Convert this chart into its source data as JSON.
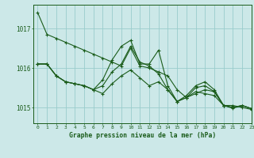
{
  "background_color": "#cce8e8",
  "grid_color": "#99cccc",
  "line_color": "#1a5c1a",
  "title": "Graphe pression niveau de la mer (hPa)",
  "xlim": [
    -0.5,
    23
  ],
  "ylim": [
    1014.6,
    1017.6
  ],
  "yticks": [
    1015,
    1016,
    1017
  ],
  "xticks": [
    0,
    1,
    2,
    3,
    4,
    5,
    6,
    7,
    8,
    9,
    10,
    11,
    12,
    13,
    14,
    15,
    16,
    17,
    18,
    19,
    20,
    21,
    22,
    23
  ],
  "series": [
    [
      1017.4,
      1016.85,
      1016.75,
      1016.65,
      1016.55,
      1016.45,
      1016.35,
      1016.25,
      1016.15,
      1016.05,
      1016.5,
      1016.05,
      1016.0,
      1015.9,
      1015.8,
      1015.45,
      1015.25,
      1015.4,
      1015.35,
      1015.3,
      1015.05,
      1015.05,
      1015.0,
      1014.95
    ],
    [
      1016.1,
      1016.1,
      1015.8,
      1015.65,
      1015.6,
      1015.55,
      1015.45,
      1015.7,
      1016.2,
      1016.55,
      1016.7,
      1016.1,
      1016.1,
      1016.45,
      1015.55,
      1015.15,
      1015.3,
      1015.55,
      1015.65,
      1015.45,
      1015.05,
      1014.98,
      1015.05,
      1014.97
    ],
    [
      1016.1,
      1016.1,
      1015.8,
      1015.65,
      1015.6,
      1015.55,
      1015.45,
      1015.55,
      1015.9,
      1016.1,
      1016.55,
      1016.15,
      1016.05,
      1015.85,
      1015.45,
      1015.15,
      1015.25,
      1015.5,
      1015.55,
      1015.4,
      1015.05,
      1015.0,
      1015.05,
      1014.97
    ],
    [
      1016.1,
      1016.1,
      1015.8,
      1015.65,
      1015.6,
      1015.55,
      1015.45,
      1015.35,
      1015.6,
      1015.8,
      1015.95,
      1015.75,
      1015.55,
      1015.65,
      1015.45,
      1015.15,
      1015.25,
      1015.35,
      1015.45,
      1015.4,
      1015.05,
      1015.0,
      1015.05,
      1014.97
    ]
  ]
}
